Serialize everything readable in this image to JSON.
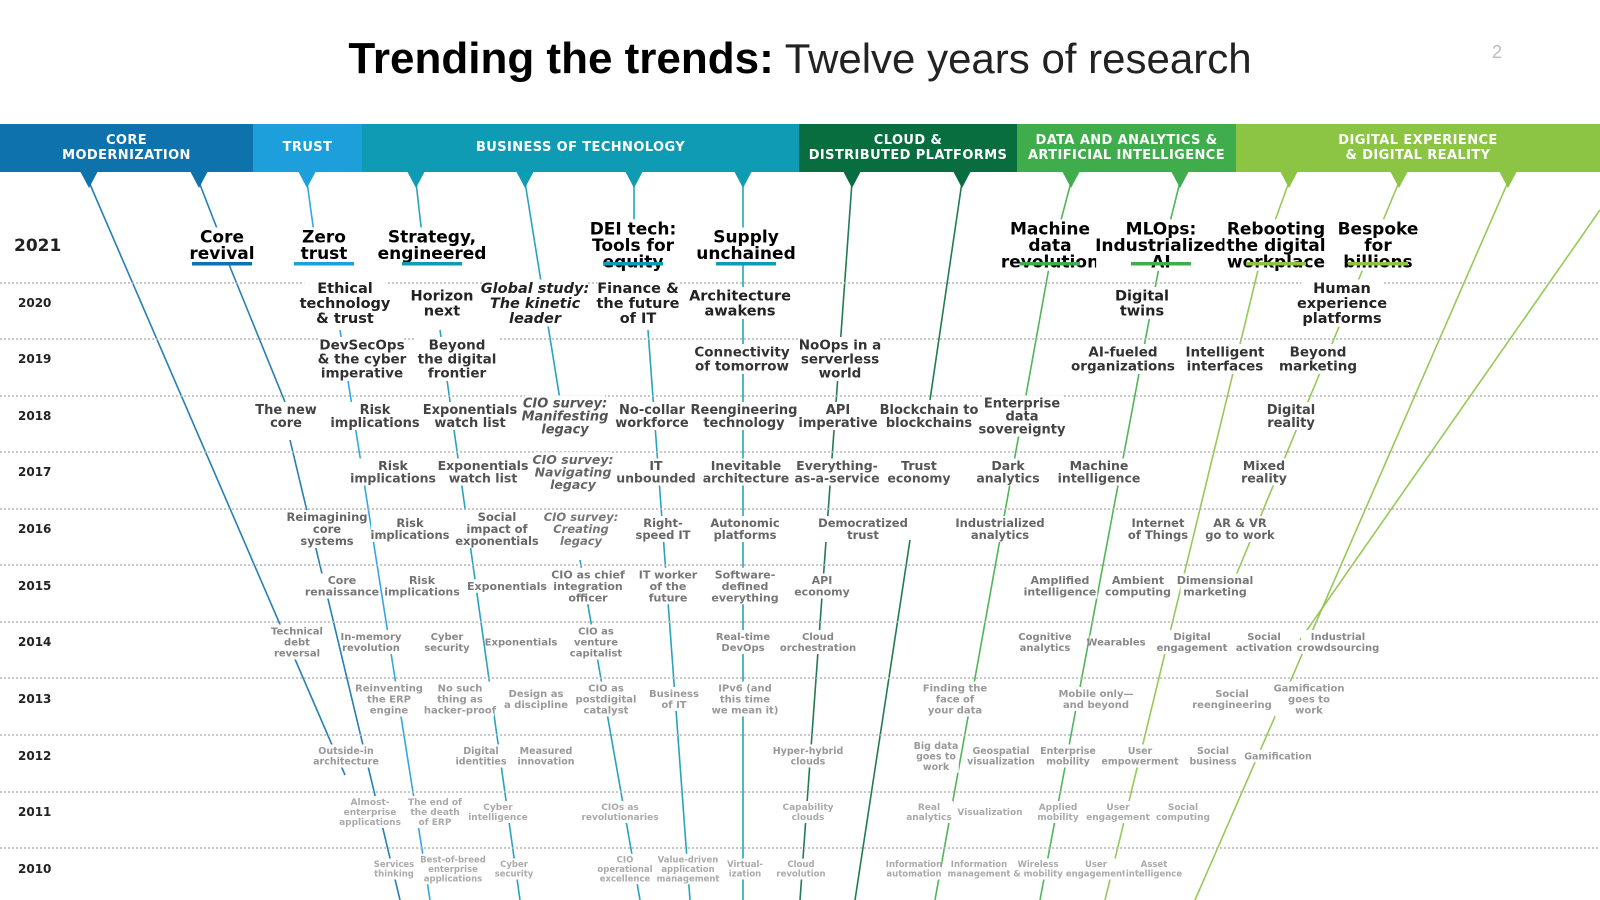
{
  "title": {
    "bold": "Trending the trends:",
    "light": " Twelve years of research"
  },
  "page_number": "2",
  "categories": [
    {
      "label": "CORE\nMODERNIZATION",
      "color": "#0e72ad"
    },
    {
      "label": "TRUST",
      "color": "#1d9fdb"
    },
    {
      "label": "BUSINESS OF TECHNOLOGY",
      "color": "#109bb5"
    },
    {
      "label": "CLOUD &\nDISTRIBUTED PLATFORMS",
      "color": "#096e3f"
    },
    {
      "label": "DATA AND ANALYTICS &\nARTIFICIAL INTELLIGENCE",
      "color": "#3fad4b"
    },
    {
      "label": "DIGITAL EXPERIENCE\n& DIGITAL REALITY",
      "color": "#8cc443"
    }
  ],
  "years": [
    "2021",
    "2020",
    "2019",
    "2018",
    "2017",
    "2016",
    "2015",
    "2014",
    "2013",
    "2012",
    "2011",
    "2010"
  ],
  "trends_2021": [
    "Core\nrevival",
    "Zero\ntrust",
    "Strategy,\nengineered",
    "DEI tech:\nTools for\nequity",
    "Supply\nunchained",
    "Machine\ndata\nrevolution",
    "MLOps:\nIndustrialized\nAI",
    "Rebooting\nthe digital\nworkplace",
    "Bespoke\nfor\nbillions"
  ],
  "trends_2020": [
    "Ethical\ntechnology\n& trust",
    "Horizon\nnext",
    "Global study:\nThe kinetic\nleader",
    "Finance &\nthe future\nof IT",
    "Architecture\nawakens",
    "Digital\ntwins",
    "Human\nexperience\nplatforms"
  ],
  "trends_2019": [
    "DevSecOps\n& the cyber\nimperative",
    "Beyond\nthe digital\nfrontier",
    "Connectivity\nof tomorrow",
    "NoOps in a\nserverless\nworld",
    "AI-fueled\norganizations",
    "Intelligent\ninterfaces",
    "Beyond\nmarketing"
  ],
  "trends_2018": [
    "The new\ncore",
    "Risk\nimplications",
    "Exponentials\nwatch list",
    "CIO survey:\nManifesting\nlegacy",
    "No-collar\nworkforce",
    "Reengineering\ntechnology",
    "API\nimperative",
    "Blockchain to\nblockchains",
    "Enterprise\ndata\nsovereignty",
    "Digital\nreality"
  ],
  "trends_2017": [
    "Risk\nimplications",
    "Exponentials\nwatch list",
    "CIO survey:\nNavigating\nlegacy",
    "IT\nunbounded",
    "Inevitable\narchitecture",
    "Everything-\nas-a-service",
    "Trust\neconomy",
    "Dark\nanalytics",
    "Machine\nintelligence",
    "Mixed\nreality"
  ],
  "trends_2016": [
    "Reimagining\ncore\nsystems",
    "Risk\nimplications",
    "Social\nimpact of\nexponentials",
    "CIO survey:\nCreating\nlegacy",
    "Right-\nspeed IT",
    "Autonomic\nplatforms",
    "Democratized\ntrust",
    "Industrialized\nanalytics",
    "Internet\nof Things",
    "AR & VR\ngo to work"
  ],
  "trends_2015": [
    "Core\nrenaissance",
    "Risk\nimplications",
    "Exponentials",
    "CIO as chief\nintegration\nofficer",
    "IT worker\nof the\nfuture",
    "Software-\ndefined\neverything",
    "API\neconomy",
    "Amplified\nintelligence",
    "Ambient\ncomputing",
    "Dimensional\nmarketing"
  ],
  "trends_2014": [
    "Technical\ndebt\nreversal",
    "In-memory\nrevolution",
    "Cyber\nsecurity",
    "Exponentials",
    "CIO as\nventure\ncapitalist",
    "Real-time\nDevOps",
    "Cloud\norchestration",
    "Cognitive\nanalytics",
    "Wearables",
    "Digital\nengagement",
    "Social\nactivation",
    "Industrial\ncrowdsourcing"
  ],
  "trends_2013": [
    "Reinventing\nthe ERP\nengine",
    "No such\nthing as\nhacker-proof",
    "Design as\na discipline",
    "CIO as\npostdigital\ncatalyst",
    "Business\nof IT",
    "IPv6 (and\nthis time\nwe mean it)",
    "Finding the\nface of\nyour data",
    "Mobile only—\nand beyond",
    "Social\nreengineering",
    "Gamification\ngoes to\nwork"
  ],
  "trends_2012": [
    "Outside-in\narchitecture",
    "Digital\nidentities",
    "Measured\ninnovation",
    "Hyper-hybrid\nclouds",
    "Big data\ngoes to\nwork",
    "Geospatial\nvisualization",
    "Enterprise\nmobility",
    "User\nempowerment",
    "Social\nbusiness",
    "Gamification"
  ],
  "trends_2011": [
    "Almost-\nenterprise\napplications",
    "The end of\nthe death\nof ERP",
    "Cyber\nintelligence",
    "CIOs as\nrevolutionaries",
    "Capability\nclouds",
    "Real\nanalytics",
    "Visualization",
    "Applied\nmobility",
    "User\nengagement",
    "Social\ncomputing"
  ],
  "trends_2010": [
    "Services\nthinking",
    "Best-of-breed\nenterprise\napplications",
    "Cyber\nsecurity",
    "CIO\noperational\nexcellence",
    "Value-driven\napplication\nmanagement",
    "Virtual-\nization",
    "Cloud\nrevolution",
    "Information\nautomation",
    "Information\nmanagement",
    "Wireless\n& mobility",
    "User\nengagement",
    "Asset\nintelligence"
  ]
}
